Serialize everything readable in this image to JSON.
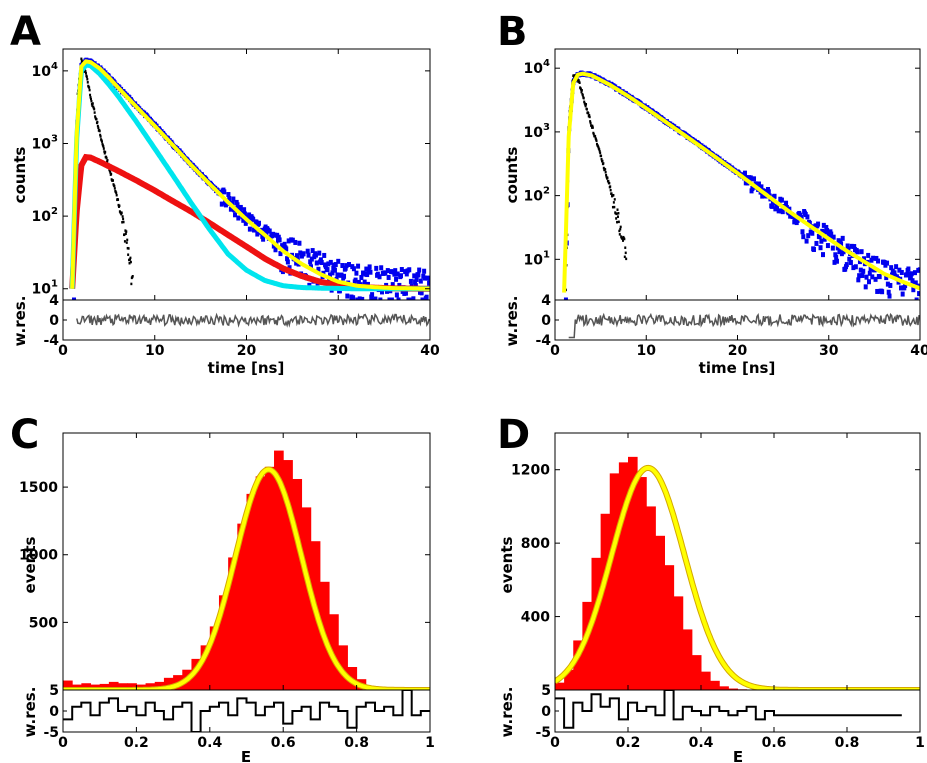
{
  "chart_data": [
    {
      "panel": "A",
      "type": "line",
      "x_label": "time [ns]",
      "y_label": "counts",
      "residual_label": "w.res.",
      "x_range": [
        0,
        40
      ],
      "x_ticks": [
        "0",
        "10",
        "20",
        "30",
        "40"
      ],
      "y_scale": "log",
      "y_range": [
        7,
        20000
      ],
      "y_ticks": [
        {
          "v": 10,
          "t": "10^1"
        },
        {
          "v": 100,
          "t": "10^2"
        },
        {
          "v": 1000,
          "t": "10^3"
        },
        {
          "v": 10000,
          "t": "10^4"
        }
      ],
      "residual_range": [
        -4,
        4
      ],
      "residual_ticks": [
        "4",
        "0",
        "-4"
      ],
      "grid": false,
      "colors": {
        "data": "#0000ee",
        "irf": "#000000",
        "fit": "#ffff00",
        "fit_edge": "#2222cc",
        "comp1": "#ee1111",
        "comp2": "#00e5ee",
        "residual": "#555555"
      },
      "series": [
        {
          "role": "irf",
          "x": [
            1.2,
            1.6,
            2.0,
            2.5,
            3.0,
            4.0,
            5.0,
            6.0,
            7.0,
            7.6
          ],
          "y": [
            10,
            5000,
            14000,
            9000,
            4500,
            1400,
            480,
            160,
            45,
            12
          ]
        },
        {
          "role": "data",
          "x": [
            1.2,
            1.5,
            2.0,
            2.5,
            3.0,
            4.0,
            5.0,
            6.0,
            8.0,
            10,
            12,
            14,
            16,
            18,
            20,
            22,
            24,
            26,
            28,
            30,
            32,
            34,
            36,
            38,
            40
          ],
          "y": [
            10,
            1500,
            12000,
            13800,
            13500,
            11000,
            8200,
            6000,
            3300,
            1800,
            960,
            510,
            280,
            160,
            95,
            58,
            38,
            27,
            20,
            16,
            14,
            13,
            12,
            12,
            12
          ]
        },
        {
          "role": "fit",
          "x": [
            1.0,
            1.5,
            2.0,
            2.5,
            3.0,
            4.0,
            5.0,
            6.0,
            8.0,
            10,
            12,
            14,
            16,
            18,
            20,
            22,
            24,
            26,
            28,
            30,
            32,
            34,
            36,
            38,
            40
          ],
          "y": [
            10,
            1400,
            11500,
            13500,
            13200,
            10800,
            8100,
            5900,
            3200,
            1750,
            940,
            500,
            275,
            155,
            90,
            55,
            33,
            22,
            16,
            12.5,
            11,
            10.5,
            10.2,
            10.1,
            10
          ]
        },
        {
          "role": "comp1",
          "x": [
            1.0,
            1.5,
            2.0,
            2.5,
            3.0,
            4.0,
            6.0,
            8.0,
            10,
            12,
            14,
            16,
            18,
            20,
            22,
            24,
            26,
            28,
            30,
            32,
            36,
            40
          ],
          "y": [
            10,
            120,
            500,
            650,
            640,
            560,
            420,
            310,
            225,
            160,
            115,
            80,
            55,
            38,
            26,
            19,
            15,
            12.5,
            11.2,
            10.6,
            10.1,
            10
          ]
        },
        {
          "role": "comp2",
          "x": [
            1.0,
            1.5,
            2.0,
            2.5,
            3.0,
            4.0,
            5.0,
            6.0,
            8.0,
            10,
            12,
            14,
            16,
            18,
            20,
            22,
            24,
            26,
            28,
            32,
            36,
            40
          ],
          "y": [
            10,
            1200,
            10000,
            12000,
            11800,
            9100,
            6500,
            4500,
            2000,
            850,
            360,
            150,
            65,
            30,
            18,
            13,
            11,
            10.4,
            10.2,
            10,
            10,
            10
          ]
        },
        {
          "role": "residual",
          "x": [
            0,
            2,
            4,
            6,
            8,
            10,
            12,
            14,
            16,
            18,
            20,
            22,
            24,
            26,
            28,
            30,
            32,
            34,
            36,
            38,
            40
          ],
          "y": [
            0.3,
            -0.5,
            0.4,
            -0.6,
            0.2,
            0.5,
            -0.3,
            0.1,
            0.4,
            -0.2,
            0.3,
            -0.5,
            0.2,
            0.1,
            -0.4,
            0.3,
            -0.1,
            0.2,
            0.4,
            -0.3,
            0.1
          ]
        }
      ]
    },
    {
      "panel": "B",
      "type": "line",
      "x_label": "time [ns]",
      "y_label": "counts",
      "residual_label": "w.res.",
      "x_range": [
        0,
        40
      ],
      "x_ticks": [
        "0",
        "10",
        "20",
        "30",
        "40"
      ],
      "y_scale": "log",
      "y_range": [
        2.3,
        20000
      ],
      "y_ticks": [
        {
          "v": 10,
          "t": "10^1"
        },
        {
          "v": 100,
          "t": "10^2"
        },
        {
          "v": 1000,
          "t": "10^3"
        },
        {
          "v": 10000,
          "t": "10^4"
        }
      ],
      "residual_range": [
        -4,
        4
      ],
      "residual_ticks": [
        "4",
        "0",
        "-4"
      ],
      "grid": false,
      "colors": {
        "data": "#0000ee",
        "irf": "#000000",
        "fit": "#ffff00",
        "fit_edge": "#2222cc",
        "residual": "#555555"
      },
      "series": [
        {
          "role": "irf",
          "x": [
            1.2,
            1.6,
            2.0,
            2.5,
            3.0,
            4.0,
            5.0,
            6.0,
            7.0,
            7.8
          ],
          "y": [
            3,
            2000,
            8000,
            7000,
            4000,
            1300,
            420,
            140,
            40,
            12
          ]
        },
        {
          "role": "data",
          "x": [
            1.2,
            1.5,
            2.0,
            2.5,
            3.0,
            4.0,
            6.0,
            8.0,
            10,
            12,
            14,
            16,
            18,
            20,
            22,
            24,
            26,
            28,
            30,
            32,
            34,
            36,
            38,
            40
          ],
          "y": [
            3,
            900,
            6000,
            8000,
            8300,
            7800,
            5600,
            3700,
            2400,
            1500,
            950,
            600,
            370,
            230,
            140,
            85,
            52,
            32,
            20,
            13,
            8,
            6,
            5,
            4.5
          ]
        },
        {
          "role": "fit",
          "x": [
            1.0,
            1.5,
            2.0,
            2.5,
            3.0,
            4.0,
            6.0,
            8.0,
            10,
            12,
            14,
            16,
            18,
            20,
            22,
            24,
            26,
            28,
            30,
            32,
            34,
            36,
            38,
            40
          ],
          "y": [
            3,
            850,
            5800,
            7900,
            8200,
            7700,
            5500,
            3650,
            2350,
            1480,
            930,
            585,
            365,
            225,
            137,
            84,
            52,
            33,
            21,
            13.5,
            9,
            6,
            4.5,
            3.5
          ]
        },
        {
          "role": "residual",
          "x": [
            0,
            2,
            4,
            6,
            8,
            10,
            12,
            14,
            16,
            18,
            20,
            22,
            24,
            26,
            28,
            30,
            32,
            34,
            36,
            38,
            40
          ],
          "y": [
            0.2,
            -2.5,
            0.3,
            -0.4,
            0.2,
            0.4,
            -0.3,
            0.2,
            0.3,
            -0.2,
            0.2,
            -0.4,
            0.3,
            0.1,
            -0.3,
            0.2,
            -0.1,
            0.3,
            0.2,
            -0.2,
            0.1
          ]
        }
      ]
    },
    {
      "panel": "C",
      "type": "bar",
      "x_label": "E",
      "y_label": "events",
      "residual_label": "w.res.",
      "x_range": [
        0,
        1
      ],
      "x_ticks": [
        "0",
        "0.2",
        "0.4",
        "0.6",
        "0.8",
        "1"
      ],
      "y_range": [
        0,
        1900
      ],
      "y_ticks": [
        {
          "v": 500,
          "t": "500"
        },
        {
          "v": 1000,
          "t": "1000"
        },
        {
          "v": 1500,
          "t": "1500"
        }
      ],
      "residual_range": [
        -5,
        5
      ],
      "residual_ticks": [
        "5",
        "0",
        "-5"
      ],
      "grid": false,
      "colors": {
        "bars": "#ff0000",
        "fit": "#ffff00",
        "fit_edge": "#d4a800",
        "residual": "#000000"
      },
      "series": [
        {
          "role": "bars",
          "bin_start": 0,
          "bin_width": 0.025,
          "values": [
            70,
            40,
            50,
            40,
            45,
            60,
            50,
            50,
            40,
            50,
            60,
            90,
            110,
            150,
            230,
            330,
            470,
            700,
            980,
            1230,
            1450,
            1580,
            1650,
            1770,
            1700,
            1560,
            1350,
            1100,
            800,
            560,
            330,
            170,
            80,
            30,
            10,
            5,
            0,
            0,
            0,
            0
          ]
        },
        {
          "role": "fit",
          "mu": 0.56,
          "sigma": 0.09,
          "amp": 1630
        },
        {
          "role": "residual",
          "bin_start": 0,
          "bin_width": 0.025,
          "values": [
            -2,
            1,
            2,
            -1,
            2,
            3,
            0,
            1,
            -1,
            2,
            0,
            -2,
            1,
            2,
            -5,
            0,
            1,
            2,
            -1,
            3,
            2,
            -1,
            1,
            2,
            -3,
            0,
            1,
            -2,
            2,
            1,
            0,
            -4,
            1,
            2,
            0,
            1,
            -1,
            5,
            -1,
            0
          ]
        }
      ]
    },
    {
      "panel": "D",
      "type": "bar",
      "x_label": "E",
      "y_label": "events",
      "residual_label": "w.res.",
      "x_range": [
        0,
        1
      ],
      "x_ticks": [
        "0",
        "0.2",
        "0.4",
        "0.6",
        "0.8",
        "1"
      ],
      "y_range": [
        0,
        1400
      ],
      "y_ticks": [
        {
          "v": 400,
          "t": "400"
        },
        {
          "v": 800,
          "t": "800"
        },
        {
          "v": 1200,
          "t": "1200"
        }
      ],
      "residual_range": [
        -5,
        5
      ],
      "residual_ticks": [
        "5",
        "0",
        "-5"
      ],
      "grid": false,
      "colors": {
        "bars": "#ff0000",
        "fit": "#ffff00",
        "fit_edge": "#d4a800",
        "residual": "#000000"
      },
      "series": [
        {
          "role": "bars",
          "bin_start": 0,
          "bin_width": 0.025,
          "values": [
            40,
            110,
            270,
            480,
            720,
            960,
            1180,
            1240,
            1270,
            1160,
            1000,
            840,
            680,
            510,
            330,
            190,
            100,
            50,
            20,
            8,
            4,
            2,
            0,
            0,
            0,
            0,
            0,
            0,
            0,
            0,
            0,
            0,
            0,
            0,
            0,
            0,
            0,
            0
          ]
        },
        {
          "role": "fit",
          "mu": 0.255,
          "sigma": 0.1,
          "amp": 1210
        },
        {
          "role": "residual",
          "bin_start": 0,
          "bin_width": 0.025,
          "values": [
            3,
            -4,
            2,
            0,
            4,
            1,
            3,
            -2,
            2,
            0,
            1,
            -1,
            5,
            -2,
            1,
            0,
            -1,
            1,
            0,
            -1,
            0,
            1,
            -2,
            0,
            -1,
            -1,
            -1,
            -1,
            -1,
            -1,
            -1,
            -1,
            -1,
            -1,
            -1,
            -1,
            -1,
            -1
          ]
        }
      ]
    }
  ],
  "panel_labels": [
    "A",
    "B",
    "C",
    "D"
  ]
}
